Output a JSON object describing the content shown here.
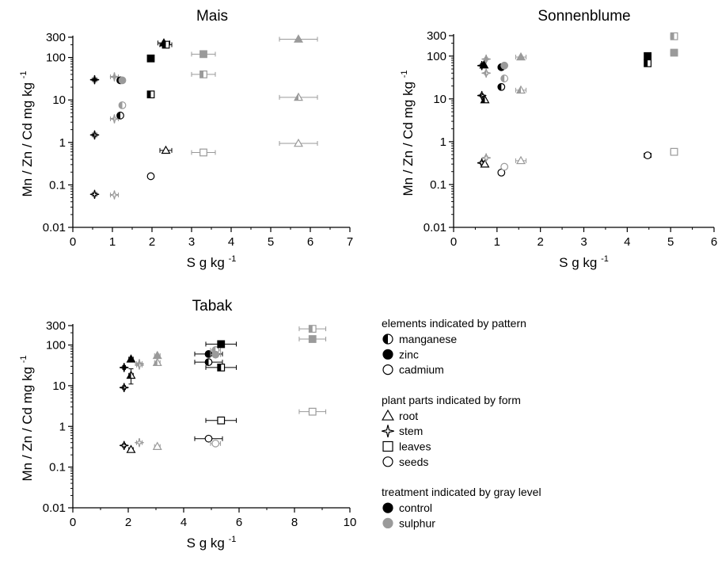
{
  "legend": {
    "groups": [
      {
        "title": "elements indicated by pattern",
        "items": [
          {
            "label": "manganese",
            "sym": "circle",
            "fill": "half"
          },
          {
            "label": "zinc",
            "sym": "circle",
            "fill": "solid"
          },
          {
            "label": "cadmium",
            "sym": "circle",
            "fill": "open"
          }
        ]
      },
      {
        "title": "plant parts indicated by form",
        "items": [
          {
            "label": "root",
            "sym": "triangle",
            "fill": "open"
          },
          {
            "label": "stem",
            "sym": "star",
            "fill": "open"
          },
          {
            "label": "leaves",
            "sym": "square",
            "fill": "open"
          },
          {
            "label": "seeds",
            "sym": "circle",
            "fill": "open"
          }
        ]
      },
      {
        "title": "treatment indicated by gray level",
        "items": [
          {
            "label": "control",
            "sym": "circle",
            "fill": "solid"
          },
          {
            "label": "sulphur",
            "sym": "circle",
            "fill": "solid",
            "gray": true
          }
        ]
      }
    ]
  },
  "colors": {
    "control": "#000000",
    "sulphur": "#9a9a9a"
  },
  "chart_data": [
    {
      "type": "scatter",
      "title": "Mais",
      "xlabel": "S g kg",
      "xlabel_sup": "-1",
      "ylabel": "Mn / Zn / Cd mg kg",
      "ylabel_sup": "-1",
      "xlim": [
        0,
        7
      ],
      "xticks": [
        "0",
        "1",
        "2",
        "3",
        "4",
        "5",
        "6",
        "7"
      ],
      "ylim": [
        0.01,
        300
      ],
      "yscale": "log",
      "yticks": [
        {
          "v": 0.01,
          "l": "0.01"
        },
        {
          "v": 0.1,
          "l": "0.1"
        },
        {
          "v": 1,
          "l": "1"
        },
        {
          "v": 10,
          "l": "10"
        },
        {
          "v": 100,
          "l": "100"
        },
        {
          "v": 300,
          "l": "300"
        }
      ],
      "points": [
        {
          "x": 0.55,
          "y": 30,
          "xerr": 0.05,
          "shape": "star",
          "fill": "solid",
          "tr": "control"
        },
        {
          "x": 0.55,
          "y": 1.5,
          "xerr": 0.05,
          "shape": "star",
          "fill": "half",
          "tr": "control"
        },
        {
          "x": 0.55,
          "y": 0.06,
          "xerr": 0.05,
          "shape": "star",
          "fill": "open",
          "tr": "control"
        },
        {
          "x": 1.05,
          "y": 35,
          "xerr": 0.1,
          "shape": "star",
          "fill": "solid",
          "tr": "sulphur"
        },
        {
          "x": 1.05,
          "y": 3.6,
          "xerr": 0.1,
          "shape": "star",
          "fill": "half",
          "tr": "sulphur"
        },
        {
          "x": 1.05,
          "y": 0.058,
          "xerr": 0.1,
          "shape": "star",
          "fill": "open",
          "tr": "sulphur"
        },
        {
          "x": 1.2,
          "y": 29,
          "xerr": 0.03,
          "shape": "circle",
          "fill": "solid",
          "tr": "control"
        },
        {
          "x": 1.25,
          "y": 29,
          "xerr": 0.03,
          "shape": "circle",
          "fill": "solid",
          "tr": "sulphur"
        },
        {
          "x": 1.2,
          "y": 4.3,
          "xerr": 0.03,
          "shape": "circle",
          "fill": "half",
          "tr": "control"
        },
        {
          "x": 1.25,
          "y": 7.5,
          "xerr": 0.03,
          "shape": "circle",
          "fill": "half",
          "tr": "sulphur"
        },
        {
          "x": 1.97,
          "y": 95,
          "xerr": 0.05,
          "shape": "square",
          "fill": "solid",
          "tr": "control"
        },
        {
          "x": 1.97,
          "y": 13.5,
          "xerr": 0.05,
          "shape": "square",
          "fill": "half",
          "tr": "control"
        },
        {
          "x": 1.97,
          "y": 0.16,
          "xerr": 0.05,
          "shape": "circle",
          "fill": "open",
          "tr": "control"
        },
        {
          "x": 2.3,
          "y": 220,
          "xerr": 0.15,
          "shape": "triangle",
          "fill": "solid",
          "tr": "control"
        },
        {
          "x": 2.35,
          "y": 200,
          "xerr": 0.15,
          "shape": "square",
          "fill": "half",
          "tr": "control"
        },
        {
          "x": 2.35,
          "y": 0.65,
          "xerr": 0.15,
          "shape": "triangle",
          "fill": "open",
          "tr": "control"
        },
        {
          "x": 3.3,
          "y": 120,
          "xerr": 0.3,
          "shape": "square",
          "fill": "solid",
          "tr": "sulphur"
        },
        {
          "x": 3.3,
          "y": 40,
          "xerr": 0.3,
          "shape": "square",
          "fill": "half",
          "tr": "sulphur"
        },
        {
          "x": 3.3,
          "y": 0.58,
          "xerr": 0.3,
          "shape": "square",
          "fill": "open",
          "tr": "sulphur"
        },
        {
          "x": 5.7,
          "y": 270,
          "xerr": 0.48,
          "shape": "triangle",
          "fill": "solid",
          "tr": "sulphur"
        },
        {
          "x": 5.7,
          "y": 11.5,
          "xerr": 0.48,
          "shape": "triangle",
          "fill": "half",
          "tr": "sulphur"
        },
        {
          "x": 5.7,
          "y": 0.95,
          "xerr": 0.48,
          "shape": "triangle",
          "fill": "open",
          "tr": "sulphur"
        }
      ]
    },
    {
      "type": "scatter",
      "title": "Sonnenblume",
      "xlabel": "S g kg",
      "xlabel_sup": "-1",
      "ylabel": "Mn / Zn / Cd mg kg",
      "ylabel_sup": "-1",
      "xlim": [
        0,
        6
      ],
      "xticks": [
        "0",
        "1",
        "2",
        "3",
        "4",
        "5",
        "6"
      ],
      "ylim": [
        0.01,
        300
      ],
      "yscale": "log",
      "yticks": [
        {
          "v": 0.01,
          "l": "0.01"
        },
        {
          "v": 0.1,
          "l": "0.1"
        },
        {
          "v": 1,
          "l": "1"
        },
        {
          "v": 10,
          "l": "10"
        },
        {
          "v": 100,
          "l": "100"
        },
        {
          "v": 300,
          "l": "300"
        }
      ],
      "points": [
        {
          "x": 0.65,
          "y": 60,
          "xerr": 0.03,
          "shape": "star",
          "fill": "solid",
          "tr": "control"
        },
        {
          "x": 0.7,
          "y": 62,
          "xerr": 0.03,
          "shape": "triangle",
          "fill": "solid",
          "tr": "control"
        },
        {
          "x": 0.75,
          "y": 85,
          "xerr": 0.03,
          "shape": "star",
          "fill": "solid",
          "tr": "sulphur"
        },
        {
          "x": 0.75,
          "y": 40,
          "xerr": 0.03,
          "shape": "star",
          "fill": "half",
          "tr": "sulphur"
        },
        {
          "x": 0.65,
          "y": 12,
          "xerr": 0.03,
          "shape": "star",
          "fill": "half",
          "tr": "control"
        },
        {
          "x": 0.72,
          "y": 9.5,
          "xerr": 0.03,
          "shape": "triangle",
          "fill": "half",
          "tr": "control"
        },
        {
          "x": 0.65,
          "y": 0.32,
          "xerr": 0.03,
          "shape": "star",
          "fill": "open",
          "tr": "control"
        },
        {
          "x": 0.72,
          "y": 0.3,
          "xerr": 0.03,
          "shape": "triangle",
          "fill": "open",
          "tr": "control"
        },
        {
          "x": 0.75,
          "y": 0.42,
          "xerr": 0.03,
          "shape": "star",
          "fill": "open",
          "tr": "sulphur"
        },
        {
          "x": 1.1,
          "y": 55,
          "xerr": 0.03,
          "shape": "circle",
          "fill": "solid",
          "tr": "control"
        },
        {
          "x": 1.17,
          "y": 60,
          "xerr": 0.03,
          "shape": "circle",
          "fill": "solid",
          "tr": "sulphur"
        },
        {
          "x": 1.17,
          "y": 30,
          "xerr": 0.03,
          "shape": "circle",
          "fill": "half",
          "tr": "sulphur"
        },
        {
          "x": 1.1,
          "y": 19,
          "xerr": 0.03,
          "shape": "circle",
          "fill": "half",
          "tr": "control"
        },
        {
          "x": 1.1,
          "y": 0.19,
          "xerr": 0.03,
          "shape": "circle",
          "fill": "open",
          "tr": "control"
        },
        {
          "x": 1.17,
          "y": 0.26,
          "xerr": 0.03,
          "shape": "circle",
          "fill": "open",
          "tr": "sulphur"
        },
        {
          "x": 1.55,
          "y": 95,
          "xerr": 0.12,
          "shape": "triangle",
          "fill": "solid",
          "tr": "sulphur"
        },
        {
          "x": 1.55,
          "y": 16,
          "xerr": 0.12,
          "shape": "triangle",
          "fill": "half",
          "tr": "sulphur"
        },
        {
          "x": 1.55,
          "y": 0.36,
          "xerr": 0.12,
          "shape": "triangle",
          "fill": "open",
          "tr": "sulphur"
        },
        {
          "x": 4.47,
          "y": 100,
          "xerr": 0.04,
          "shape": "square",
          "fill": "solid",
          "tr": "control"
        },
        {
          "x": 4.47,
          "y": 68,
          "xerr": 0.04,
          "shape": "square",
          "fill": "half",
          "tr": "control"
        },
        {
          "x": 4.47,
          "y": 0.48,
          "xerr": 0.08,
          "shape": "circle",
          "fill": "open",
          "tr": "control"
        },
        {
          "x": 5.08,
          "y": 290,
          "xerr": 0.08,
          "shape": "square",
          "fill": "half",
          "tr": "sulphur"
        },
        {
          "x": 5.08,
          "y": 120,
          "xerr": 0.08,
          "shape": "square",
          "fill": "solid",
          "tr": "sulphur"
        },
        {
          "x": 5.08,
          "y": 0.58,
          "xerr": 0.08,
          "shape": "square",
          "fill": "open",
          "tr": "sulphur"
        }
      ]
    },
    {
      "type": "scatter",
      "title": "Tabak",
      "xlabel": "S g kg",
      "xlabel_sup": "-1",
      "ylabel": "Mn / Zn / Cd mg kg",
      "ylabel_sup": "-1",
      "xlim": [
        0,
        10
      ],
      "xticks": [
        "0",
        "2",
        "4",
        "6",
        "8",
        "10"
      ],
      "ylim": [
        0.01,
        300
      ],
      "yscale": "log",
      "yticks": [
        {
          "v": 0.01,
          "l": "0.01"
        },
        {
          "v": 0.1,
          "l": "0.1"
        },
        {
          "v": 1,
          "l": "1"
        },
        {
          "v": 10,
          "l": "10"
        },
        {
          "v": 100,
          "l": "100"
        },
        {
          "v": 300,
          "l": "300"
        }
      ],
      "points": [
        {
          "x": 1.85,
          "y": 28,
          "xerr": 0.05,
          "shape": "star",
          "fill": "solid",
          "tr": "control"
        },
        {
          "x": 2.1,
          "y": 45,
          "xerr": 0.08,
          "shape": "triangle",
          "fill": "solid",
          "tr": "control"
        },
        {
          "x": 1.85,
          "y": 9,
          "xerr": 0.05,
          "shape": "star",
          "fill": "half",
          "tr": "control"
        },
        {
          "x": 2.1,
          "y": 18,
          "xerr": 0.08,
          "yerr_lo": 11,
          "yerr_hi": 26,
          "shape": "triangle",
          "fill": "half",
          "tr": "control"
        },
        {
          "x": 1.85,
          "y": 0.34,
          "xerr": 0.05,
          "shape": "star",
          "fill": "open",
          "tr": "control"
        },
        {
          "x": 2.1,
          "y": 0.27,
          "xerr": 0.08,
          "shape": "triangle",
          "fill": "open",
          "tr": "control"
        },
        {
          "x": 2.4,
          "y": 35,
          "xerr": 0.1,
          "shape": "star",
          "fill": "solid",
          "tr": "sulphur"
        },
        {
          "x": 2.4,
          "y": 32,
          "xerr": 0.1,
          "shape": "star",
          "fill": "half",
          "tr": "sulphur"
        },
        {
          "x": 2.4,
          "y": 0.4,
          "xerr": 0.1,
          "shape": "star",
          "fill": "open",
          "tr": "sulphur"
        },
        {
          "x": 3.05,
          "y": 55,
          "xerr": 0.1,
          "shape": "triangle",
          "fill": "solid",
          "tr": "sulphur"
        },
        {
          "x": 3.05,
          "y": 37,
          "xerr": 0.1,
          "shape": "triangle",
          "fill": "half",
          "tr": "sulphur"
        },
        {
          "x": 3.05,
          "y": 0.32,
          "xerr": 0.1,
          "shape": "triangle",
          "fill": "open",
          "tr": "sulphur"
        },
        {
          "x": 4.9,
          "y": 60,
          "xerr": 0.5,
          "shape": "circle",
          "fill": "solid",
          "tr": "control"
        },
        {
          "x": 4.9,
          "y": 38,
          "xerr": 0.5,
          "shape": "circle",
          "fill": "half",
          "tr": "control"
        },
        {
          "x": 4.9,
          "y": 0.5,
          "xerr": 0.5,
          "shape": "circle",
          "fill": "open",
          "tr": "control"
        },
        {
          "x": 5.15,
          "y": 75,
          "xerr": 0.18,
          "shape": "circle",
          "fill": "half",
          "tr": "sulphur"
        },
        {
          "x": 5.15,
          "y": 58,
          "xerr": 0.18,
          "shape": "circle",
          "fill": "solid",
          "tr": "sulphur"
        },
        {
          "x": 5.15,
          "y": 0.38,
          "xerr": 0.18,
          "shape": "circle",
          "fill": "open",
          "tr": "sulphur"
        },
        {
          "x": 5.35,
          "y": 105,
          "xerr": 0.55,
          "shape": "square",
          "fill": "solid",
          "tr": "control"
        },
        {
          "x": 5.35,
          "y": 28,
          "xerr": 0.55,
          "shape": "square",
          "fill": "half",
          "tr": "control"
        },
        {
          "x": 5.35,
          "y": 1.4,
          "xerr": 0.55,
          "shape": "square",
          "fill": "open",
          "tr": "control"
        },
        {
          "x": 8.65,
          "y": 250,
          "xerr": 0.48,
          "shape": "square",
          "fill": "half",
          "tr": "sulphur"
        },
        {
          "x": 8.65,
          "y": 140,
          "xerr": 0.48,
          "shape": "square",
          "fill": "solid",
          "tr": "sulphur"
        },
        {
          "x": 8.65,
          "y": 2.3,
          "xerr": 0.48,
          "shape": "square",
          "fill": "open",
          "tr": "sulphur"
        }
      ]
    }
  ]
}
